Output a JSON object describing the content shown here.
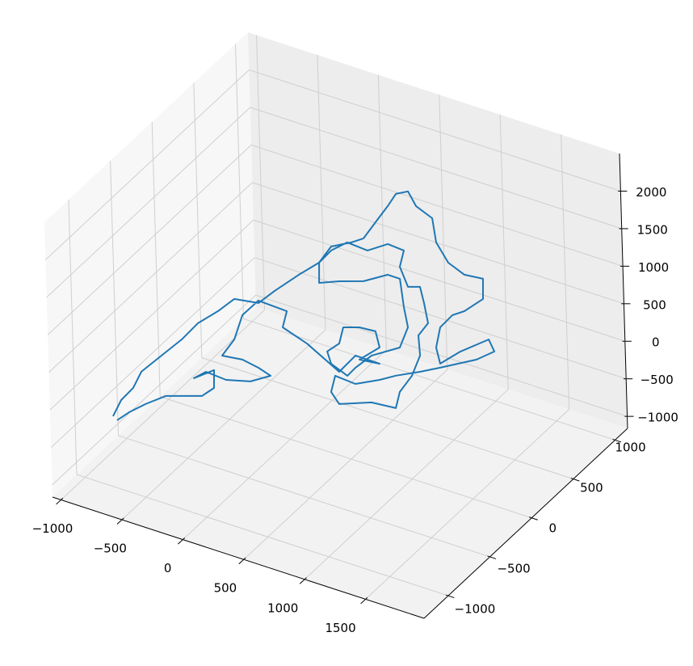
{
  "chart_data": {
    "type": "line3d",
    "color": "#1f77b4",
    "grid": true,
    "xlim": [
      -1070,
      1980
    ],
    "ylim": [
      -1290,
      1150
    ],
    "zlim": [
      -1160,
      2500
    ],
    "xticks": [
      {
        "value": -1000,
        "label": "−1000"
      },
      {
        "value": -500,
        "label": "−500"
      },
      0,
      500,
      1000,
      1500
    ],
    "yticks": [
      {
        "value": -1000,
        "label": "−1000"
      },
      {
        "value": -500,
        "label": "−500"
      },
      0,
      500,
      1000
    ],
    "zticks": [
      {
        "value": -1000,
        "label": "−1000"
      },
      {
        "value": -500,
        "label": "−500"
      },
      0,
      500,
      1000,
      1500,
      2000
    ],
    "x": [
      -1029,
      -1024,
      -981,
      -976,
      -891,
      -806,
      -748,
      -652,
      -582,
      -410,
      -340,
      -229,
      -132,
      -101,
      20,
      88,
      119,
      151,
      168,
      240,
      336,
      479,
      577,
      717,
      859,
      993,
      1053,
      967,
      900,
      856,
      890,
      964,
      1061,
      1211,
      1284,
      1191,
      976,
      856,
      708,
      614,
      467,
      310,
      332,
      421,
      628,
      805,
      783,
      814,
      808,
      737,
      764,
      678,
      603,
      524,
      411,
      389,
      264,
      150,
      -7,
      -89,
      -132,
      -72,
      56,
      215,
      355,
      447,
      557,
      644,
      651,
      489,
      419,
      390,
      248,
      185,
      241,
      219,
      325,
      443,
      518,
      421,
      566,
      383,
      325,
      28,
      -179,
      -200,
      -418,
      -480,
      -461,
      -493,
      -348,
      -218,
      -114,
      -230,
      -394,
      -551,
      -611,
      -503,
      -450,
      -506,
      -744,
      -853,
      -935,
      -991
    ],
    "y": [
      -613,
      -520,
      -436,
      -343,
      -221,
      -99,
      13,
      117,
      211,
      251,
      345,
      477,
      581,
      683,
      750,
      798,
      900,
      1003,
      1077,
      1118,
      1071,
      1055,
      955,
      893,
      877,
      904,
      812,
      712,
      665,
      581,
      479,
      416,
      520,
      643,
      602,
      522,
      398,
      330,
      254,
      196,
      119,
      107,
      24,
      -11,
      74,
      107,
      190,
      293,
      404,
      491,
      570,
      651,
      715,
      686,
      757,
      840,
      831,
      753,
      740,
      665,
      581,
      489,
      545,
      604,
      692,
      703,
      584,
      503,
      391,
      287,
      193,
      137,
      152,
      198,
      263,
      346,
      385,
      406,
      343,
      239,
      269,
      248,
      135,
      185,
      200,
      283,
      262,
      157,
      28,
      -75,
      -44,
      -42,
      -49,
      -123,
      -175,
      -187,
      -245,
      -160,
      -241,
      -306,
      -394,
      -480,
      -555,
      -621
    ],
    "z": [
      -763,
      -642,
      -544,
      -422,
      -289,
      -155,
      -25,
      80,
      181,
      176,
      277,
      415,
      520,
      645,
      694,
      734,
      860,
      985,
      1079,
      1108,
      1013,
      943,
      776,
      645,
      576,
      565,
      423,
      319,
      279,
      182,
      35,
      -75,
      30,
      143,
      63,
      -11,
      -103,
      -151,
      -203,
      -248,
      -300,
      -262,
      -380,
      -458,
      -415,
      -431,
      -313,
      -188,
      -37,
      103,
      198,
      337,
      447,
      435,
      570,
      688,
      718,
      652,
      690,
      617,
      520,
      377,
      408,
      432,
      501,
      484,
      289,
      150,
      0,
      -85,
      -186,
      -251,
      -181,
      -99,
      -31,
      87,
      103,
      90,
      -20,
      -125,
      -134,
      -100,
      -230,
      -62,
      28,
      146,
      193,
      75,
      -104,
      -230,
      -239,
      -280,
      -325,
      -385,
      -397,
      -360,
      -417,
      -340,
      -466,
      -535,
      -570,
      -647,
      -719,
      -788
    ]
  }
}
